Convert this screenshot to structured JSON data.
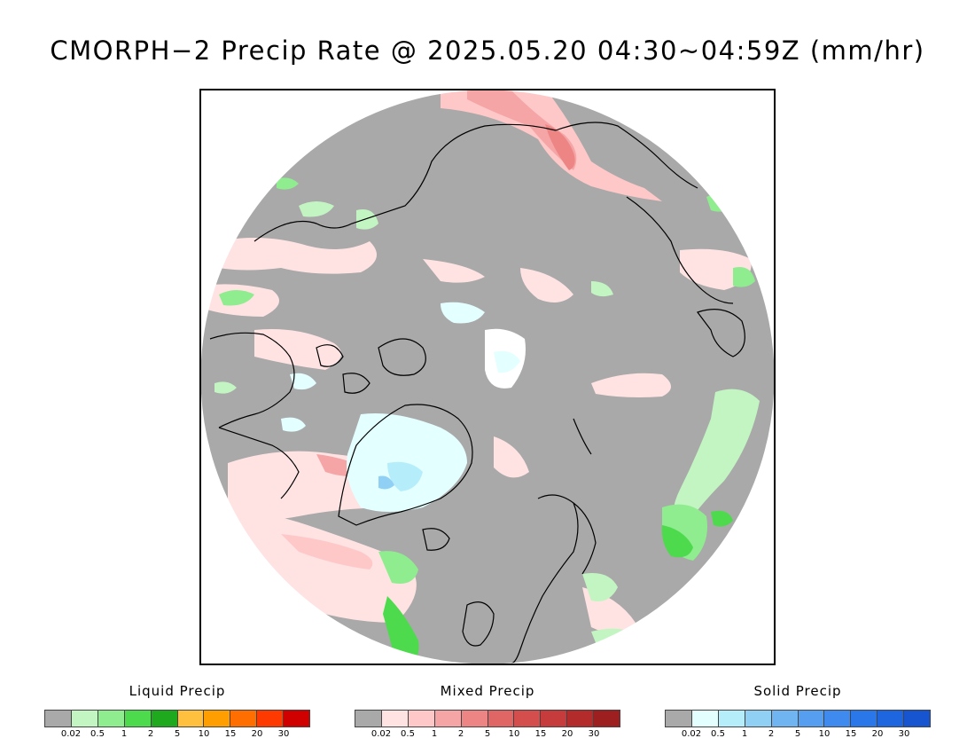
{
  "title": "CMORPH−2 Precip Rate @ 2025.05.20 04:30~04:59Z (mm/hr)",
  "map": {
    "projection": "north-polar-stereographic",
    "background_no_precip_color": "#a9a9a9",
    "outside_color": "#ffffff",
    "coastline_color": "#000000"
  },
  "legends": [
    {
      "id": "liquid",
      "title": "Liquid Precip",
      "colors": [
        "#a9a9a9",
        "#c2f5c2",
        "#8fec8f",
        "#4ddb4d",
        "#1fa91f",
        "#ffbf3f",
        "#ff9e00",
        "#ff6e00",
        "#ff3a00",
        "#d10000"
      ],
      "ticks": [
        "0.02",
        "0.5",
        "1",
        "2",
        "5",
        "10",
        "15",
        "20",
        "30"
      ]
    },
    {
      "id": "mixed",
      "title": "Mixed Precip",
      "colors": [
        "#a9a9a9",
        "#ffe3e3",
        "#ffc8c8",
        "#f5a5a5",
        "#ed8585",
        "#e06565",
        "#d54e4e",
        "#c63c3c",
        "#b42b2b",
        "#9e1f1f"
      ],
      "ticks": [
        "0.02",
        "0.5",
        "1",
        "2",
        "5",
        "10",
        "15",
        "20",
        "30"
      ]
    },
    {
      "id": "solid",
      "title": "Solid Precip",
      "colors": [
        "#a9a9a9",
        "#e3ffff",
        "#b5eefa",
        "#90d0f5",
        "#70b5f2",
        "#569ff0",
        "#3e8aef",
        "#2a77ea",
        "#1e65e0",
        "#1655cf"
      ],
      "ticks": [
        "0.02",
        "0.5",
        "1",
        "2",
        "5",
        "10",
        "15",
        "20",
        "30"
      ]
    }
  ]
}
